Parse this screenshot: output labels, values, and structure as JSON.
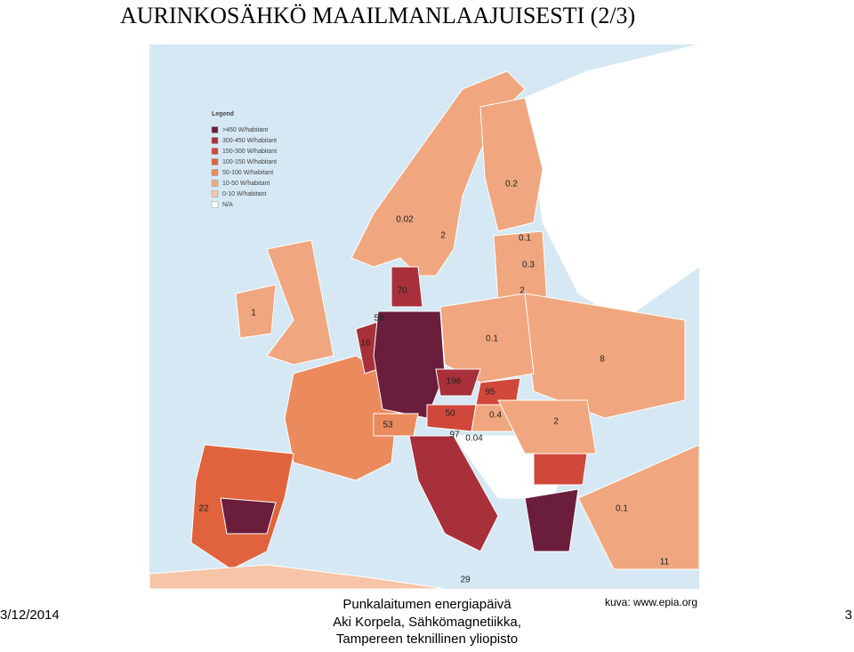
{
  "header": {
    "title": "AURINKOSÄHKÖ MAAILMANLAAJUISESTI (2/3)"
  },
  "map": {
    "legend": {
      "title": "Legend",
      "entries": [
        ">450 W/habitant",
        "300-450 W/habitant",
        "150-300 W/habitant",
        "100-150 W/habitant",
        "50-100 W/habitant",
        "10-50 W/habitant",
        "0-10 W/habitant",
        "N/A"
      ]
    },
    "labels": [
      "0.02",
      "2",
      "0.2",
      "0.1",
      "0.3",
      "2",
      "70",
      "59",
      "16",
      "1",
      "0.1",
      "8",
      "196",
      "95",
      "0.4",
      "2",
      "50",
      "53",
      "97",
      "0.04",
      "22",
      "0.1",
      "11",
      "29"
    ]
  },
  "footer": {
    "date": "3/12/2014",
    "lines": [
      "Punkalaitumen energiapäivä",
      "Aki Korpela, Sähkömagnetiikka,",
      "Tampereen teknillinen yliopisto"
    ],
    "source": "kuva:  www.epia.org",
    "page": "3"
  }
}
